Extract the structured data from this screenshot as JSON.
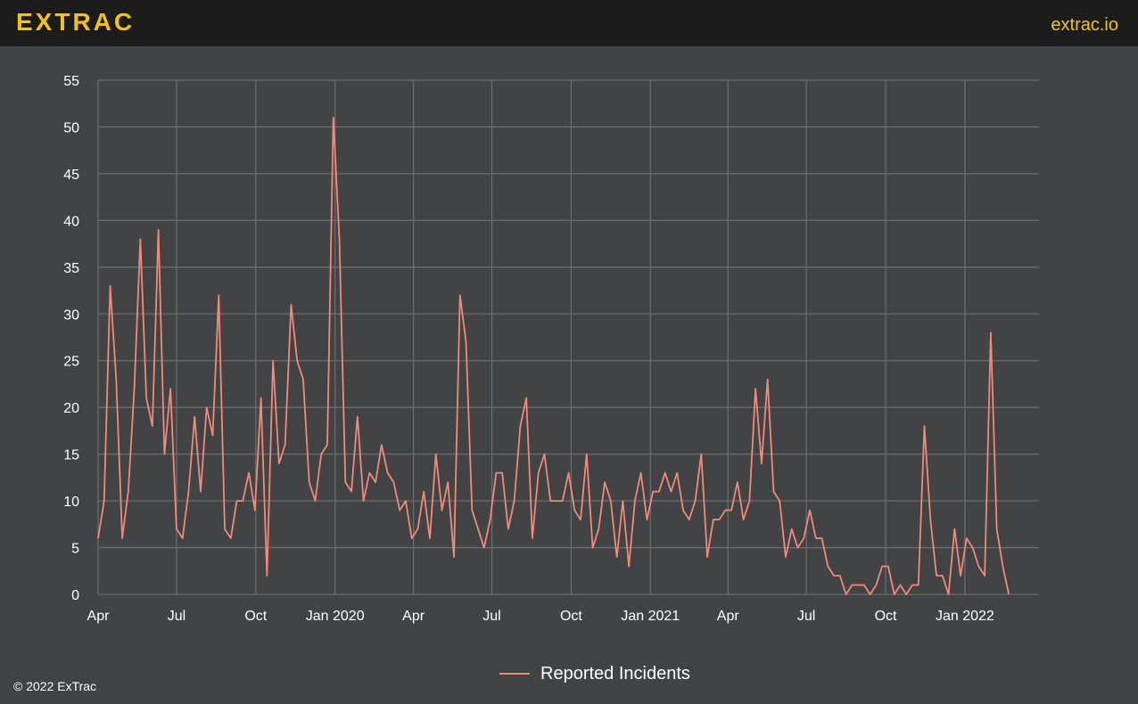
{
  "header": {
    "logo_text": "EXTRAC",
    "site_link": "extrac.io",
    "logo_color": "#f2c40f",
    "background": "#1c1c1c"
  },
  "footer": {
    "copyright": "© 2022 ExTrac"
  },
  "chart_data": {
    "type": "line",
    "title": "",
    "xlabel": "",
    "ylabel": "",
    "ylim": [
      0,
      55
    ],
    "xlim": [
      "2019-04-01",
      "2022-03-28"
    ],
    "grid": true,
    "legend_position": "bottom-center",
    "y_ticks": [
      "0",
      "5",
      "10",
      "15",
      "20",
      "25",
      "30",
      "35",
      "40",
      "45",
      "50",
      "55"
    ],
    "x_ticks": [
      {
        "date": "2019-04-01",
        "label": "Apr"
      },
      {
        "date": "2019-07-01",
        "label": "Jul"
      },
      {
        "date": "2019-10-01",
        "label": "Oct"
      },
      {
        "date": "2020-01-01",
        "label": "Jan 2020"
      },
      {
        "date": "2020-04-01",
        "label": "Apr"
      },
      {
        "date": "2020-07-01",
        "label": "Jul"
      },
      {
        "date": "2020-10-01",
        "label": "Oct"
      },
      {
        "date": "2021-01-01",
        "label": "Jan 2021"
      },
      {
        "date": "2021-04-01",
        "label": "Apr"
      },
      {
        "date": "2021-07-01",
        "label": "Jul"
      },
      {
        "date": "2021-10-01",
        "label": "Oct"
      },
      {
        "date": "2022-01-01",
        "label": "Jan 2022"
      }
    ],
    "series": [
      {
        "name": "Reported Incidents",
        "color": "#f08a7a",
        "x_start": "2019-04-01",
        "frequency": "weekly",
        "values": [
          6,
          10,
          33,
          23,
          6,
          11,
          22,
          38,
          21,
          18,
          39,
          15,
          22,
          7,
          6,
          11,
          19,
          11,
          20,
          17,
          32,
          7,
          6,
          10,
          10,
          13,
          9,
          21,
          2,
          25,
          14,
          16,
          31,
          25,
          23,
          12,
          10,
          15,
          16,
          51,
          38,
          12,
          11,
          19,
          10,
          13,
          12,
          16,
          13,
          12,
          9,
          10,
          6,
          7,
          11,
          6,
          15,
          9,
          12,
          4,
          32,
          27,
          9,
          7,
          5,
          8,
          13,
          13,
          7,
          10,
          18,
          21,
          6,
          13,
          15,
          10,
          10,
          10,
          13,
          9,
          8,
          15,
          5,
          7,
          12,
          10,
          4,
          10,
          3,
          10,
          13,
          8,
          11,
          11,
          13,
          11,
          13,
          9,
          8,
          10,
          15,
          4,
          8,
          8,
          9,
          9,
          12,
          8,
          10,
          22,
          14,
          23,
          11,
          10,
          4,
          7,
          5,
          6,
          9,
          6,
          6,
          3,
          2,
          2,
          0,
          1,
          1,
          1,
          0,
          1,
          3,
          3,
          0,
          1,
          0,
          1,
          1,
          18,
          8,
          2,
          2,
          0,
          7,
          2,
          6,
          5,
          3,
          2,
          28,
          7,
          3,
          0
        ]
      }
    ]
  }
}
